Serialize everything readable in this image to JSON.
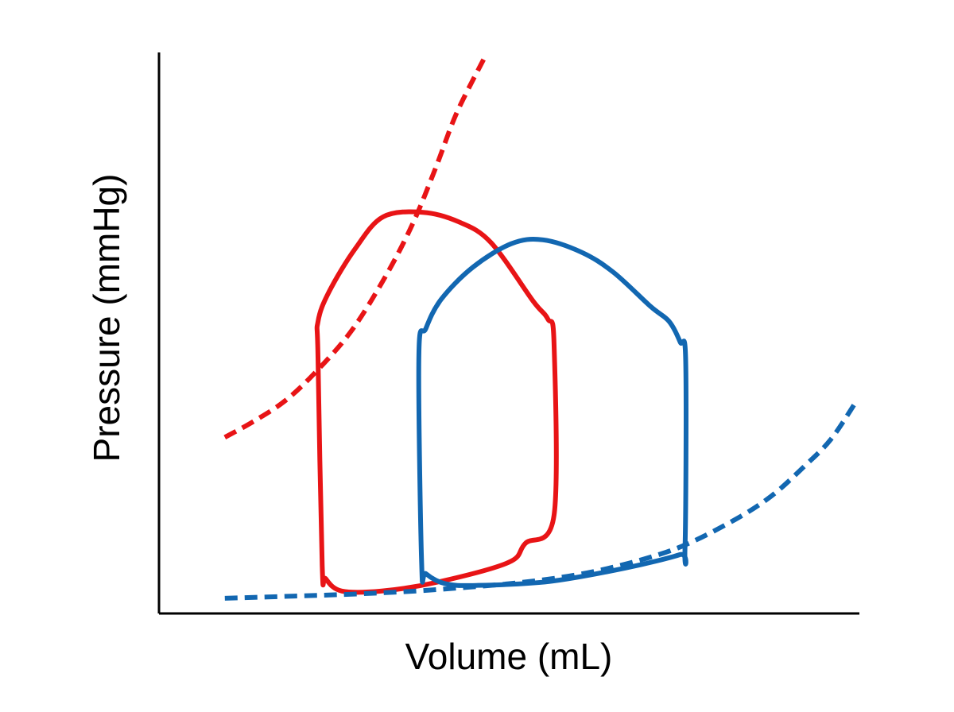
{
  "chart_data": {
    "type": "line",
    "title": "",
    "xlabel": "Volume (mL)",
    "ylabel": "Pressure (mmHg)",
    "xlim": [
      0,
      100
    ],
    "ylim": [
      0,
      100
    ],
    "ticks": false,
    "grid": false,
    "legend": "none",
    "series": [
      {
        "kind": "loop",
        "color": "#e81416",
        "dash": "solid",
        "points": [
          [
            23.3,
            8.5
          ],
          [
            23.8,
            6.2
          ],
          [
            26.1,
            4.0
          ],
          [
            31.8,
            4.0
          ],
          [
            39.8,
            5.6
          ],
          [
            49.9,
            9.1
          ],
          [
            52.3,
            12.5
          ],
          [
            56.4,
            17.5
          ],
          [
            56.4,
            48.1
          ],
          [
            55.5,
            52.5
          ],
          [
            53.4,
            55.7
          ],
          [
            47.4,
            66.1
          ],
          [
            42.8,
            69.8
          ],
          [
            37.7,
            71.5
          ],
          [
            32.0,
            70.7
          ],
          [
            28.0,
            65.0
          ],
          [
            24.3,
            57.4
          ],
          [
            22.7,
            52.0
          ],
          [
            22.7,
            45.6
          ],
          [
            23.3,
            8.5
          ]
        ]
      },
      {
        "kind": "loop",
        "color": "#1267b1",
        "dash": "solid",
        "points": [
          [
            37.5,
            8.8
          ],
          [
            38.1,
            7.1
          ],
          [
            40.9,
            5.3
          ],
          [
            45.3,
            5.0
          ],
          [
            55.7,
            5.7
          ],
          [
            66.6,
            8.1
          ],
          [
            74.4,
            10.5
          ],
          [
            75.1,
            11.5
          ],
          [
            75.2,
            45.0
          ],
          [
            74.4,
            48.4
          ],
          [
            72.8,
            52.1
          ],
          [
            70.2,
            54.7
          ],
          [
            64.9,
            60.8
          ],
          [
            60.3,
            64.4
          ],
          [
            54.8,
            66.6
          ],
          [
            50.3,
            65.9
          ],
          [
            44.8,
            61.7
          ],
          [
            40.3,
            56.0
          ],
          [
            38.1,
            50.8
          ],
          [
            37.1,
            46.0
          ],
          [
            37.4,
            8.8
          ]
        ]
      },
      {
        "kind": "curve",
        "color": "#e81416",
        "dash": "dashed",
        "points": [
          [
            9.4,
            31.4
          ],
          [
            13.6,
            34.3
          ],
          [
            18.2,
            38.1
          ],
          [
            22.8,
            43.6
          ],
          [
            27.6,
            50.6
          ],
          [
            32.3,
            60.0
          ],
          [
            36.2,
            69.4
          ],
          [
            39.5,
            79.4
          ],
          [
            42.5,
            89.2
          ],
          [
            46.4,
            98.9
          ]
        ]
      },
      {
        "kind": "curve",
        "color": "#1267b1",
        "dash": "dashed",
        "points": [
          [
            9.4,
            2.7
          ],
          [
            19.4,
            3.1
          ],
          [
            28.6,
            3.5
          ],
          [
            37.8,
            4.1
          ],
          [
            49.9,
            5.3
          ],
          [
            59.2,
            6.8
          ],
          [
            67.2,
            9.0
          ],
          [
            74.7,
            12.0
          ],
          [
            82.2,
            16.7
          ],
          [
            87.5,
            21.0
          ],
          [
            92.2,
            26.3
          ],
          [
            95.9,
            31.0
          ],
          [
            99.4,
            37.5
          ]
        ]
      }
    ]
  }
}
